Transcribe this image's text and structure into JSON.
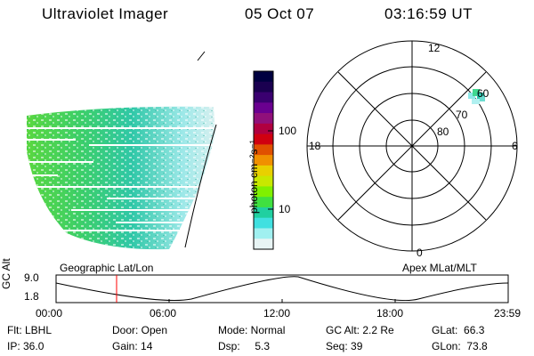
{
  "header": {
    "title": "Ultraviolet Imager",
    "date": "05 Oct 07",
    "time": "03:16:59 UT"
  },
  "colorbar": {
    "label": "photon cm⁻²s⁻¹",
    "ticks": [
      "100",
      "10"
    ],
    "colors": [
      "#000040",
      "#1a0050",
      "#3a0070",
      "#6a0090",
      "#90107a",
      "#b00040",
      "#d00010",
      "#e05000",
      "#f09000",
      "#e8d000",
      "#c8e800",
      "#80f000",
      "#40e040",
      "#20d0a0",
      "#40e0e0",
      "#a0f0f0",
      "#e8f4f4"
    ]
  },
  "map_labels": {
    "geographic": "Geographic Lat/Lon",
    "apex": "Apex MLat/MLT"
  },
  "polar_plot": {
    "mlt_labels": {
      "top": "12",
      "bottom": "0",
      "left": "18",
      "right": "6"
    },
    "lat_labels": [
      "60",
      "70",
      "80"
    ]
  },
  "timeline": {
    "ylabel": "GC Alt",
    "y_ticks": [
      "9.0",
      "1.8"
    ],
    "x_ticks": [
      "00:00",
      "06:00",
      "12:00",
      "18:00",
      "23:59"
    ],
    "marker_color": "#ff0000"
  },
  "footer": {
    "row1": [
      "Flt: LBHL",
      "Door: Open",
      "Mode: Normal",
      "GC Alt: 2.2 Re",
      "GLat:  66.3"
    ],
    "row2": [
      "IP: 36.0",
      "Gain: 14",
      "Dsp:     5.3",
      "Seq: 39",
      "GLon:  73.8"
    ]
  }
}
